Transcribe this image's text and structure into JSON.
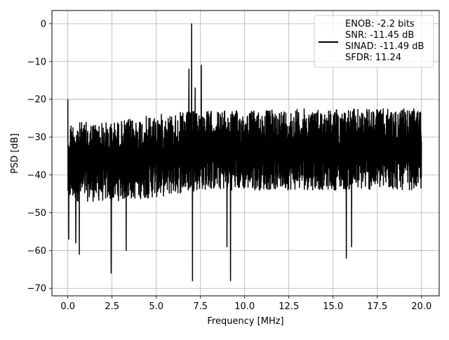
{
  "chart_data": {
    "type": "line",
    "title": "",
    "xlabel": "Frequency [MHz]",
    "ylabel": "PSD [dB]",
    "xlim": [
      -0.9,
      21.0
    ],
    "ylim": [
      -72,
      3.5
    ],
    "xticks": [
      0.0,
      2.5,
      5.0,
      7.5,
      10.0,
      12.5,
      15.0,
      17.5,
      20.0
    ],
    "xtick_labels": [
      "0.0",
      "2.5",
      "5.0",
      "7.5",
      "10.0",
      "12.5",
      "15.0",
      "17.5",
      "20.0"
    ],
    "yticks": [
      0,
      -10,
      -20,
      -30,
      -40,
      -50,
      -60,
      -70
    ],
    "ytick_labels": [
      "0",
      "−10",
      "−20",
      "−30",
      "−40",
      "−50",
      "−60",
      "−70"
    ],
    "grid": true,
    "legend_position": "top-right",
    "legend_lines": [
      "ENOB: -2.2 bits",
      "SNR: -11.45 dB",
      "SINAD: -11.49 dB",
      "SFDR: 11.24"
    ],
    "series": [
      {
        "color": "#000000",
        "noise_floor": {
          "x_range": [
            0,
            20
          ],
          "upper_envelope": [
            [
              0,
              -26
            ],
            [
              2.5,
              -26
            ],
            [
              5,
              -24
            ],
            [
              7.5,
              -23
            ],
            [
              10,
              -23
            ],
            [
              12.5,
              -22.5
            ],
            [
              15,
              -22.5
            ],
            [
              17.5,
              -22.5
            ],
            [
              20,
              -22.5
            ]
          ],
          "lower_envelope": [
            [
              0,
              -47
            ],
            [
              2.5,
              -47
            ],
            [
              5,
              -46
            ],
            [
              7.5,
              -44
            ],
            [
              10,
              -44
            ],
            [
              12.5,
              -44
            ],
            [
              15,
              -44
            ],
            [
              17.5,
              -44
            ],
            [
              20,
              -44
            ]
          ]
        },
        "peaks": [
          {
            "x": 0.0,
            "y": -20
          },
          {
            "x": 6.85,
            "y": -12
          },
          {
            "x": 7.0,
            "y": 0
          },
          {
            "x": 7.2,
            "y": -17
          },
          {
            "x": 7.55,
            "y": -11
          }
        ],
        "dips": [
          {
            "x": 0.05,
            "y": -57
          },
          {
            "x": 0.45,
            "y": -58
          },
          {
            "x": 0.65,
            "y": -61
          },
          {
            "x": 2.45,
            "y": -66
          },
          {
            "x": 3.3,
            "y": -60
          },
          {
            "x": 7.05,
            "y": -68
          },
          {
            "x": 9.0,
            "y": -59
          },
          {
            "x": 9.2,
            "y": -68
          },
          {
            "x": 15.75,
            "y": -62
          },
          {
            "x": 16.05,
            "y": -59
          }
        ]
      }
    ]
  }
}
